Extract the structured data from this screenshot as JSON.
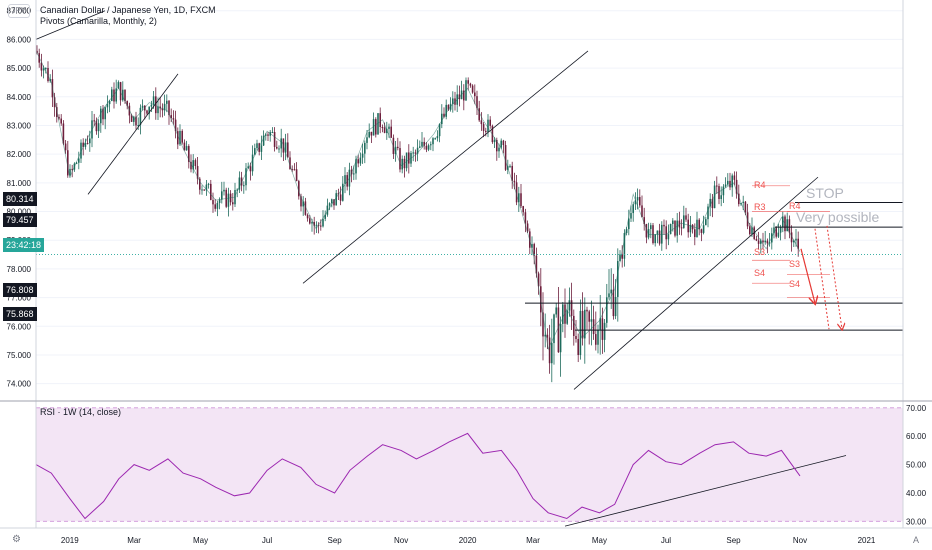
{
  "header": {
    "symbol_title": "Canadian Dollar / Japanese Yen, 1D, FXCM",
    "pivots_legend": "Pivots (Camarilla, Monthly, 2)",
    "unit": "JPY"
  },
  "rsi_legend": "RSI · 1W (14, close)",
  "annotations": {
    "stop": "STOP",
    "very_possible": "Very possible"
  },
  "axis_tags": {
    "stop_level": "80.314",
    "target_level": "79.457",
    "countdown": "23:42:18",
    "support_1": "76.808",
    "support_2": "75.868"
  },
  "pivot_labels": [
    "R4",
    "R3",
    "R4",
    "S3",
    "S4",
    "S3",
    "S4"
  ],
  "footer": {
    "auto_label": "A",
    "settings_icon": "gear-icon"
  },
  "colors": {
    "up": "#1e6b5c",
    "down": "#6d1f3c",
    "price_tag": "#26a69a",
    "rsi_line": "#9c27b0",
    "rsi_fill": "#f3e5f5",
    "pivot": "#ef5350",
    "arrow": "#e53935"
  },
  "chart_data": [
    {
      "type": "line",
      "title": "Canadian Dollar / Japanese Yen, 1D, FXCM",
      "x": [
        "2018-12-01",
        "2018-12-15",
        "2019-01-01",
        "2019-01-15",
        "2019-02-01",
        "2019-02-15",
        "2019-03-01",
        "2019-03-15",
        "2019-04-01",
        "2019-04-15",
        "2019-05-01",
        "2019-05-15",
        "2019-06-01",
        "2019-06-15",
        "2019-07-01",
        "2019-07-15",
        "2019-08-01",
        "2019-08-15",
        "2019-09-01",
        "2019-09-15",
        "2019-10-01",
        "2019-10-15",
        "2019-11-01",
        "2019-11-15",
        "2019-12-01",
        "2019-12-15",
        "2020-01-01",
        "2020-01-15",
        "2020-02-01",
        "2020-02-15",
        "2020-03-01",
        "2020-03-15",
        "2020-04-01",
        "2020-04-15",
        "2020-05-01",
        "2020-05-15",
        "2020-06-01",
        "2020-06-15",
        "2020-07-01",
        "2020-07-15",
        "2020-08-01",
        "2020-08-15",
        "2020-09-01",
        "2020-09-15",
        "2020-10-01",
        "2020-10-15",
        "2020-11-01"
      ],
      "series": [
        {
          "values": [
            85.6,
            84.5,
            81.2,
            82.4,
            83.6,
            84.3,
            83.2,
            83.8,
            83.5,
            82.2,
            81.0,
            80.4,
            80.5,
            81.6,
            82.8,
            82.4,
            80.5,
            79.4,
            80.4,
            81.2,
            82.8,
            83.2,
            81.6,
            82.0,
            82.7,
            83.6,
            84.3,
            83.2,
            82.2,
            80.6,
            78.6,
            75.2,
            76.6,
            75.6,
            76.2,
            77.3,
            80.6,
            79.2,
            79.2,
            79.6,
            79.4,
            80.6,
            81.0,
            79.6,
            78.7,
            79.8,
            78.6
          ]
        }
      ],
      "ylim": [
        73.5,
        87.2
      ],
      "yticks": [
        74.0,
        75.0,
        76.0,
        77.0,
        78.0,
        79.0,
        80.0,
        81.0,
        82.0,
        83.0,
        84.0,
        85.0,
        86.0,
        87.0
      ],
      "xtick_labels": [
        "2019",
        "Mar",
        "May",
        "Jul",
        "Sep",
        "Nov",
        "2020",
        "Mar",
        "May",
        "Jul",
        "Sep",
        "Nov",
        "2021"
      ],
      "horizontal_levels": [
        80.314,
        79.457,
        76.808,
        75.868
      ],
      "last_price": 78.5
    },
    {
      "type": "line",
      "title": "RSI · 1W (14, close)",
      "x": [
        "2018-12-01",
        "2018-12-15",
        "2019-01-01",
        "2019-01-15",
        "2019-02-01",
        "2019-02-15",
        "2019-03-01",
        "2019-03-15",
        "2019-04-01",
        "2019-04-15",
        "2019-05-01",
        "2019-05-15",
        "2019-06-01",
        "2019-06-15",
        "2019-07-01",
        "2019-07-15",
        "2019-08-01",
        "2019-08-15",
        "2019-09-01",
        "2019-09-15",
        "2019-10-01",
        "2019-10-15",
        "2019-11-01",
        "2019-11-15",
        "2019-12-01",
        "2019-12-15",
        "2020-01-01",
        "2020-01-15",
        "2020-02-01",
        "2020-02-15",
        "2020-03-01",
        "2020-03-15",
        "2020-04-01",
        "2020-04-15",
        "2020-05-01",
        "2020-05-15",
        "2020-06-01",
        "2020-06-15",
        "2020-07-01",
        "2020-07-15",
        "2020-08-01",
        "2020-08-15",
        "2020-09-01",
        "2020-09-15",
        "2020-10-01",
        "2020-10-15",
        "2020-11-01"
      ],
      "series": [
        {
          "values": [
            50,
            47,
            38,
            31,
            37,
            45,
            50,
            48,
            52,
            47,
            45,
            42,
            39,
            40,
            48,
            52,
            49,
            43,
            40,
            48,
            53,
            57,
            55,
            52,
            55,
            58,
            61,
            54,
            55,
            48,
            38,
            33,
            31,
            35,
            33,
            36,
            50,
            55,
            51,
            50,
            54,
            57,
            58,
            54,
            53,
            55,
            46
          ]
        }
      ],
      "ylim": [
        28,
        71
      ],
      "yticks": [
        30.0,
        40.0,
        50.0,
        60.0,
        70.0
      ],
      "bands": [
        30,
        70
      ]
    }
  ]
}
